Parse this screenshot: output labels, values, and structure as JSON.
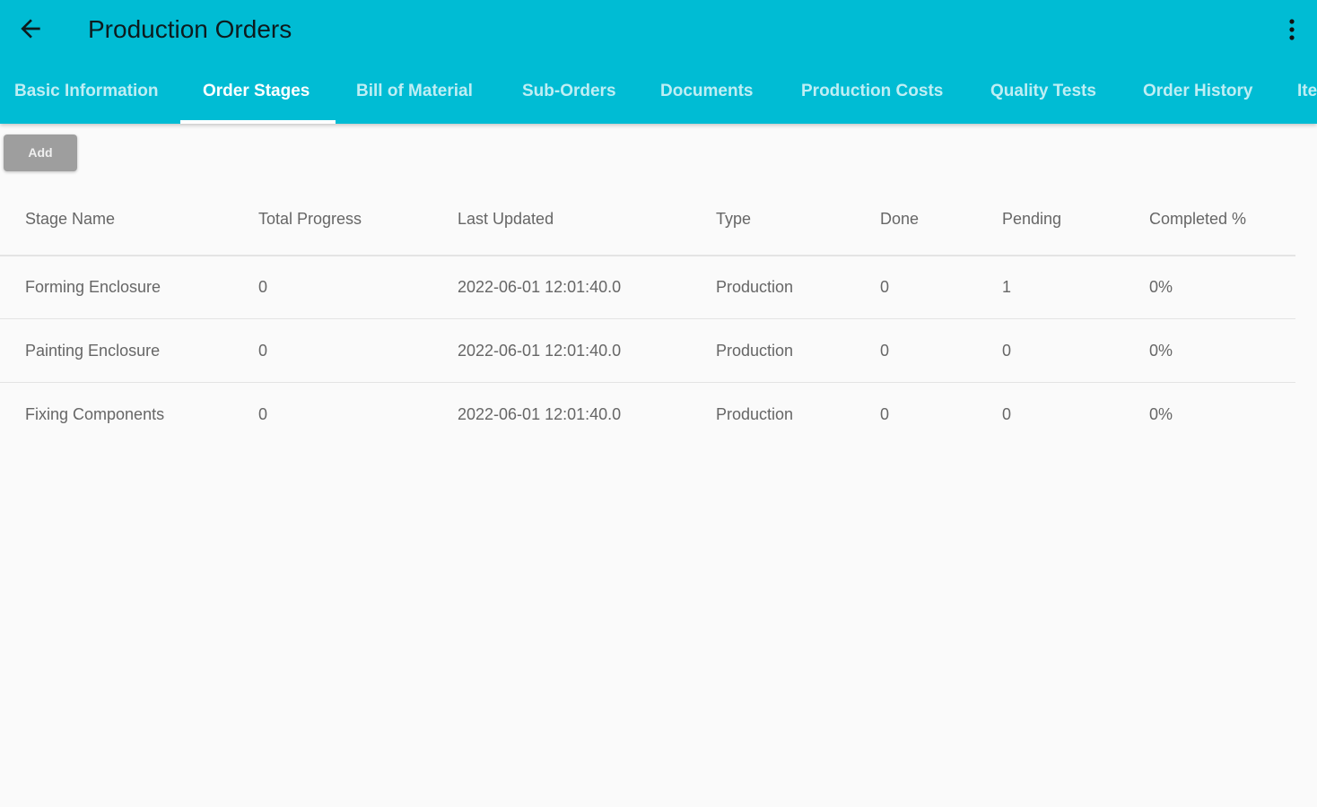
{
  "header": {
    "title": "Production Orders",
    "back_icon": "arrow-left-icon",
    "menu_icon": "more-vert-icon",
    "color": "#00bcd4"
  },
  "tabs": [
    {
      "label": "Basic Information"
    },
    {
      "label": "Order Stages",
      "active": true
    },
    {
      "label": "Bill of Material"
    },
    {
      "label": "Sub-Orders"
    },
    {
      "label": "Documents"
    },
    {
      "label": "Production Costs"
    },
    {
      "label": "Quality Tests"
    },
    {
      "label": "Order History"
    },
    {
      "label": "Ite"
    }
  ],
  "toolbar": {
    "add_label": "Add"
  },
  "table": {
    "columns": [
      "Stage Name",
      "Total Progress",
      "Last Updated",
      "Type",
      "Done",
      "Pending",
      "Completed %"
    ],
    "rows": [
      [
        "Forming Enclosure",
        "0",
        "2022-06-01 12:01:40.0",
        "Production",
        "0",
        "1",
        "0%"
      ],
      [
        "Painting Enclosure",
        "0",
        "2022-06-01 12:01:40.0",
        "Production",
        "0",
        "0",
        "0%"
      ],
      [
        "Fixing Components",
        "0",
        "2022-06-01 12:01:40.0",
        "Production",
        "0",
        "0",
        "0%"
      ]
    ]
  }
}
